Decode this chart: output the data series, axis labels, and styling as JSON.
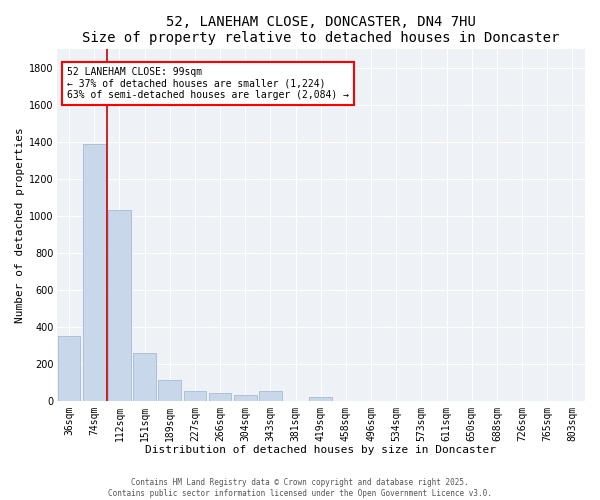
{
  "title": "52, LANEHAM CLOSE, DONCASTER, DN4 7HU",
  "subtitle": "Size of property relative to detached houses in Doncaster",
  "xlabel": "Distribution of detached houses by size in Doncaster",
  "ylabel": "Number of detached properties",
  "categories": [
    "36sqm",
    "74sqm",
    "112sqm",
    "151sqm",
    "189sqm",
    "227sqm",
    "266sqm",
    "304sqm",
    "343sqm",
    "381sqm",
    "419sqm",
    "458sqm",
    "496sqm",
    "534sqm",
    "573sqm",
    "611sqm",
    "650sqm",
    "688sqm",
    "726sqm",
    "765sqm",
    "803sqm"
  ],
  "values": [
    350,
    1390,
    1030,
    260,
    110,
    50,
    40,
    30,
    55,
    0,
    20,
    0,
    0,
    0,
    0,
    0,
    0,
    0,
    0,
    0,
    0
  ],
  "bar_color": "#c8d8ea",
  "bar_edge_color": "#9ab4cc",
  "vline_color": "#cc0000",
  "vline_x_index": 1.5,
  "annotation_box_text": "52 LANEHAM CLOSE: 99sqm\n← 37% of detached houses are smaller (1,224)\n63% of semi-detached houses are larger (2,084) →",
  "ylim": [
    0,
    1900
  ],
  "yticks": [
    0,
    200,
    400,
    600,
    800,
    1000,
    1200,
    1400,
    1600,
    1800
  ],
  "background_color": "#eef2f7",
  "footer_text": "Contains HM Land Registry data © Crown copyright and database right 2025.\nContains public sector information licensed under the Open Government Licence v3.0.",
  "title_fontsize": 10,
  "subtitle_fontsize": 9,
  "xlabel_fontsize": 8,
  "ylabel_fontsize": 8,
  "tick_fontsize": 7,
  "annotation_fontsize": 7,
  "footer_fontsize": 5.5
}
